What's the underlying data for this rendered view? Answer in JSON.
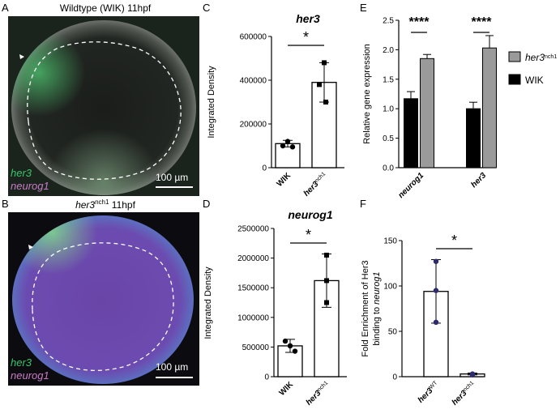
{
  "panels": {
    "A": {
      "letter": "A",
      "title": "Wildtype (WIK) 11hpf",
      "label_green": "her3",
      "label_magenta": "neurog1",
      "scale": "100 µm"
    },
    "B": {
      "letter": "B",
      "title_main": "her3",
      "title_sup": "nch1",
      "title_rest": " 11hpf",
      "label_green": "her3",
      "label_magenta": "neurog1",
      "scale": "100 µm"
    }
  },
  "colors": {
    "green_label": "#37c46a",
    "magenta_label": "#c97bc6",
    "grey_bar": "#9a9a9a",
    "black_bar": "#000000"
  },
  "chart_data": [
    {
      "id": "C",
      "letter": "C",
      "type": "bar",
      "title": "her3",
      "ylabel": "Integrated Density",
      "ylim": [
        0,
        600000
      ],
      "yticks": [
        "0",
        "200000",
        "400000",
        "600000"
      ],
      "categories": [
        {
          "main": "WIK",
          "sup": ""
        },
        {
          "main": "her3",
          "sup": "nch1"
        }
      ],
      "values": [
        110000,
        390000
      ],
      "errors": [
        15000,
        90000
      ],
      "points": [
        [
          100000,
          120000,
          95000
        ],
        [
          480000,
          380000,
          300000
        ]
      ],
      "significance": "*"
    },
    {
      "id": "D",
      "letter": "D",
      "type": "bar",
      "title": "neurog1",
      "ylabel": "Integrated Density",
      "ylim": [
        0,
        2500000
      ],
      "yticks": [
        "0",
        "500000",
        "1000000",
        "1500000",
        "2000000",
        "2500000"
      ],
      "categories": [
        {
          "main": "WIK",
          "sup": ""
        },
        {
          "main": "her3",
          "sup": "nch1"
        }
      ],
      "values": [
        520000,
        1620000
      ],
      "errors": [
        110000,
        450000
      ],
      "points": [
        [
          600000,
          520000,
          430000
        ],
        [
          2050000,
          1620000,
          1250000
        ]
      ],
      "significance": "*"
    },
    {
      "id": "E",
      "letter": "E",
      "type": "bar",
      "ylabel": "Relative gene expression",
      "ylim": [
        0,
        2.5
      ],
      "yticks": [
        "0.0",
        "0.5",
        "1.0",
        "1.5",
        "2.0",
        "2.5"
      ],
      "categories": [
        "neurog1",
        "her3"
      ],
      "series": [
        {
          "name": "WIK",
          "values": [
            1.17,
            1.0
          ],
          "errors": [
            0.12,
            0.11
          ]
        },
        {
          "name": "her3",
          "name_sup": "nch1",
          "values": [
            1.85,
            2.03
          ],
          "errors": [
            0.07,
            0.21
          ]
        }
      ],
      "significance": [
        "****",
        "****"
      ],
      "legend_placement": "right"
    },
    {
      "id": "F",
      "letter": "F",
      "type": "bar",
      "ylabel_line1": "Fold Enrichment of Her3",
      "ylabel_line2_pre": "binding to ",
      "ylabel_line2_em": "neurog1",
      "ylim": [
        0,
        150
      ],
      "yticks": [
        "0",
        "50",
        "100",
        "150"
      ],
      "categories": [
        {
          "main": "her3",
          "sup": "WT"
        },
        {
          "main": "her3",
          "sup": "nch1"
        }
      ],
      "values": [
        94,
        3
      ],
      "errors": [
        35,
        1
      ],
      "points": [
        [
          127,
          95,
          60
        ],
        [
          3,
          3,
          2
        ]
      ],
      "significance": "*"
    }
  ]
}
